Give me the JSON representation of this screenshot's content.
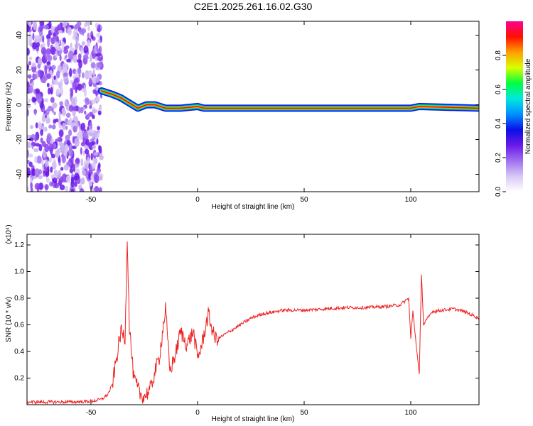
{
  "title": "C2E1.2025.261.16.02.G30",
  "colors": {
    "snr_line": "#ee2222",
    "colormap": [
      "#ffffff",
      "#d8c8f4",
      "#a070f0",
      "#6a18e8",
      "#0a10e8",
      "#0090ff",
      "#00e8e0",
      "#00ff40",
      "#d8ff00",
      "#ffa000",
      "#ff1000",
      "#ff0090"
    ]
  },
  "chart_data": [
    {
      "id": "spectrogram",
      "type": "heatmap",
      "title": "C2E1.2025.261.16.02.G30",
      "xlabel": "Height of straight line (km)",
      "ylabel": "Frequency (Hz)",
      "xlim": [
        -80,
        132
      ],
      "ylim": [
        -50,
        48
      ],
      "xticks": [
        -50,
        0,
        50,
        100
      ],
      "yticks": [
        -40,
        -20,
        0,
        20,
        40
      ],
      "colorbar": {
        "label": "Normalized spectral amplitude",
        "range": [
          0,
          1
        ],
        "ticks": [
          "0.0",
          "0.2",
          "0.4",
          "0.6",
          "0.8"
        ]
      },
      "ridge_frequency": [
        {
          "x": -45,
          "y": 8
        },
        {
          "x": -40,
          "y": 6
        },
        {
          "x": -36,
          "y": 4
        },
        {
          "x": -32,
          "y": 1
        },
        {
          "x": -28,
          "y": -2
        },
        {
          "x": -24,
          "y": 0
        },
        {
          "x": -20,
          "y": 0
        },
        {
          "x": -15,
          "y": -2
        },
        {
          "x": -8,
          "y": -2
        },
        {
          "x": 0,
          "y": -1
        },
        {
          "x": 3,
          "y": -2
        },
        {
          "x": 50,
          "y": -2
        },
        {
          "x": 100,
          "y": -2
        },
        {
          "x": 104,
          "y": -1
        },
        {
          "x": 132,
          "y": -2
        }
      ]
    },
    {
      "id": "snr",
      "type": "line",
      "xlabel": "Height of straight line (km)",
      "ylabel": "SNR (10 * v/v)",
      "y_multiplier": "(x10⁴)",
      "xlim": [
        -80,
        132
      ],
      "ylim": [
        0,
        1.28
      ],
      "xticks": [
        -50,
        0,
        50,
        100
      ],
      "yticks": [
        "0.2",
        "0.4",
        "0.6",
        "0.8",
        "1.0",
        "1.2"
      ],
      "series": [
        {
          "color": "#ee2222",
          "points": [
            [
              -80,
              0.02
            ],
            [
              -60,
              0.02
            ],
            [
              -50,
              0.025
            ],
            [
              -45,
              0.04
            ],
            [
              -42,
              0.08
            ],
            [
              -40,
              0.15
            ],
            [
              -38,
              0.35
            ],
            [
              -36,
              0.55
            ],
            [
              -34,
              0.5
            ],
            [
              -33,
              1.27
            ],
            [
              -32,
              0.6
            ],
            [
              -31,
              0.4
            ],
            [
              -30,
              0.2
            ],
            [
              -27,
              0.08
            ],
            [
              -25,
              0.06
            ],
            [
              -22,
              0.12
            ],
            [
              -20,
              0.25
            ],
            [
              -18,
              0.35
            ],
            [
              -16,
              0.6
            ],
            [
              -15,
              0.72
            ],
            [
              -13,
              0.25
            ],
            [
              -10,
              0.4
            ],
            [
              -8,
              0.55
            ],
            [
              -5,
              0.45
            ],
            [
              -2,
              0.55
            ],
            [
              0,
              0.35
            ],
            [
              2,
              0.45
            ],
            [
              5,
              0.68
            ],
            [
              8,
              0.5
            ],
            [
              10,
              0.5
            ],
            [
              15,
              0.55
            ],
            [
              20,
              0.6
            ],
            [
              25,
              0.65
            ],
            [
              30,
              0.68
            ],
            [
              40,
              0.71
            ],
            [
              50,
              0.71
            ],
            [
              60,
              0.72
            ],
            [
              70,
              0.73
            ],
            [
              80,
              0.73
            ],
            [
              90,
              0.74
            ],
            [
              95,
              0.75
            ],
            [
              99,
              0.8
            ],
            [
              100,
              0.5
            ],
            [
              101,
              0.7
            ],
            [
              104,
              0.22
            ],
            [
              105,
              0.99
            ],
            [
              106,
              0.6
            ],
            [
              110,
              0.7
            ],
            [
              120,
              0.72
            ],
            [
              125,
              0.7
            ],
            [
              132,
              0.65
            ]
          ]
        }
      ]
    }
  ]
}
